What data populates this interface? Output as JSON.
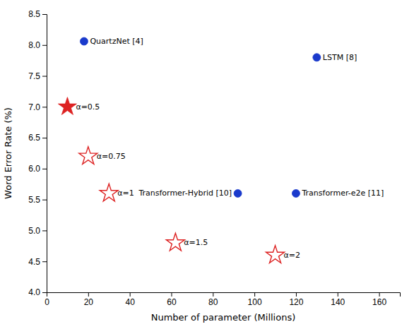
{
  "chart_data": {
    "type": "scatter",
    "xlabel": "Number of parameter (Millions)",
    "ylabel": "Word Error Rate (%)",
    "xlim": [
      0,
      170
    ],
    "ylim": [
      4.0,
      8.5
    ],
    "xticks": [
      0,
      20,
      40,
      60,
      80,
      100,
      120,
      140,
      160
    ],
    "yticks": [
      {
        "value": 4.0,
        "label": "4.0"
      },
      4.5,
      {
        "value": 5.0,
        "label": "5.0"
      },
      5.5,
      {
        "value": 6.0,
        "label": "6.0"
      },
      6.5,
      {
        "value": 7.0,
        "label": "7.0"
      },
      7.5,
      {
        "value": 8.0,
        "label": "8.0"
      },
      8.5
    ],
    "grid": false,
    "series": [
      {
        "marker": "circle",
        "color": "#1a3acc",
        "x": [
          18,
          130,
          92,
          120
        ],
        "values": [
          8.06,
          7.8,
          5.6,
          5.6
        ],
        "labels": [
          "QuartzNet [4]",
          "LSTM [8]",
          "Transformer-Hybrid [10]",
          "Transformer-e2e [11]"
        ]
      },
      {
        "marker": "star",
        "color": "#dd2222",
        "x": [
          10
        ],
        "values": [
          7.0
        ],
        "labels": [
          "α=0.5"
        ]
      },
      {
        "marker": "star-open",
        "color": "#dd2222",
        "x": [
          20,
          30,
          62,
          110
        ],
        "values": [
          6.2,
          5.6,
          4.8,
          4.6
        ],
        "labels": [
          "α=0.75",
          "α=1",
          "α=1.5",
          "α=2"
        ]
      }
    ]
  }
}
